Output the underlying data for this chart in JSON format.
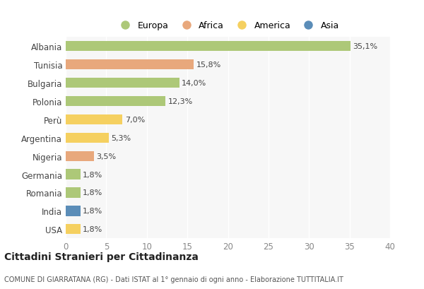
{
  "countries": [
    "Albania",
    "Tunisia",
    "Bulgaria",
    "Polonia",
    "Perù",
    "Argentina",
    "Nigeria",
    "Germania",
    "Romania",
    "India",
    "USA"
  ],
  "values": [
    35.1,
    15.8,
    14.0,
    12.3,
    7.0,
    5.3,
    3.5,
    1.8,
    1.8,
    1.8,
    1.8
  ],
  "labels": [
    "35,1%",
    "15,8%",
    "14,0%",
    "12,3%",
    "7,0%",
    "5,3%",
    "3,5%",
    "1,8%",
    "1,8%",
    "1,8%",
    "1,8%"
  ],
  "continents": [
    "Europa",
    "Africa",
    "Europa",
    "Europa",
    "America",
    "America",
    "Africa",
    "Europa",
    "Europa",
    "Asia",
    "America"
  ],
  "colors": {
    "Europa": "#adc878",
    "Africa": "#e8a87c",
    "America": "#f5d060",
    "Asia": "#5b8db8"
  },
  "xlim": [
    0,
    40
  ],
  "xticks": [
    0,
    5,
    10,
    15,
    20,
    25,
    30,
    35,
    40
  ],
  "background_color": "#ffffff",
  "plot_bg_color": "#f7f7f7",
  "title": "Cittadini Stranieri per Cittadinanza",
  "subtitle": "COMUNE DI GIARRATANA (RG) - Dati ISTAT al 1° gennaio di ogni anno - Elaborazione TUTTITALIA.IT",
  "bar_height": 0.55,
  "grid_color": "#ffffff",
  "label_fontsize": 8,
  "ytick_fontsize": 8.5,
  "xtick_fontsize": 8.5
}
